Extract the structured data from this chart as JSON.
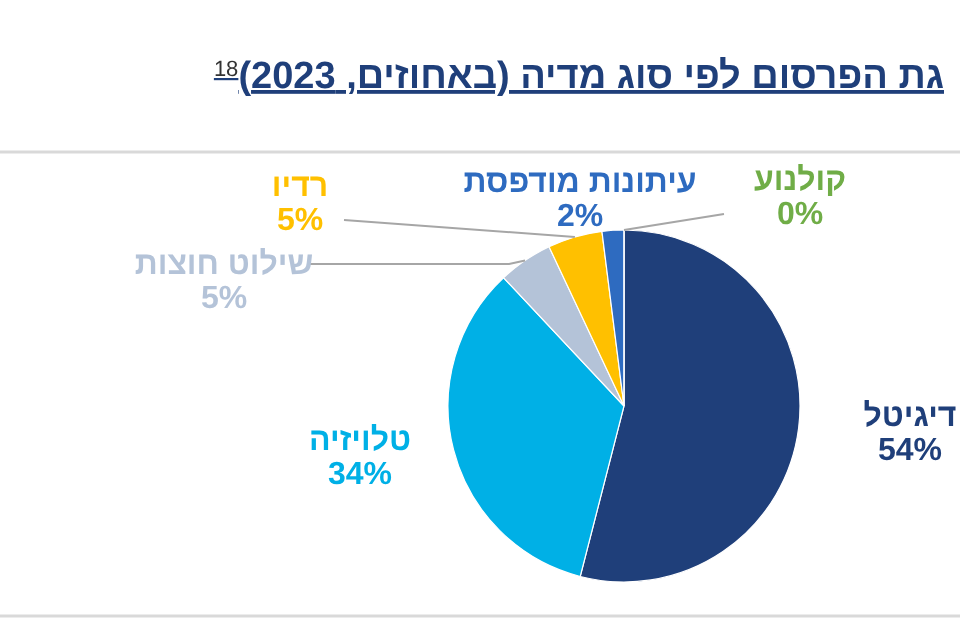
{
  "chart_data": {
    "type": "pie",
    "title": "גת הפרסום לפי סוג מדיה (באחוזים, 2023)$^{18}$",
    "categories": [
      "דיגיטל",
      "טלויזיה",
      "שילוט חוצות",
      "רדיו",
      "עיתונות מודפסת",
      "קולנוע"
    ],
    "values": [
      54,
      34,
      5,
      5,
      2,
      0
    ],
    "value_labels": [
      "54%",
      "34%",
      "5%",
      "5%",
      "2%",
      "0%"
    ],
    "colors": [
      "#1f3f7a",
      "#00b0e6",
      "#b4c3d8",
      "#ffc000",
      "#2e6bc0",
      "#70ad47"
    ]
  }
}
